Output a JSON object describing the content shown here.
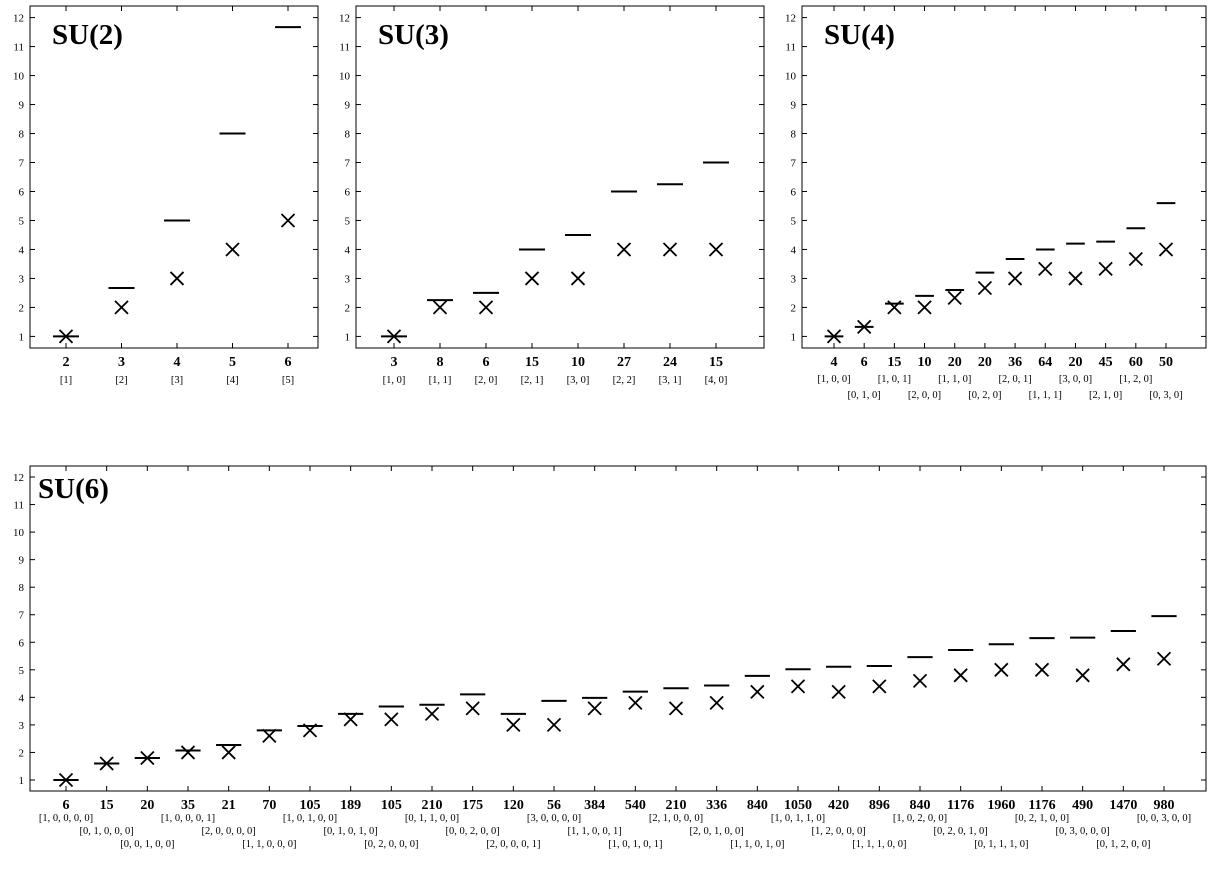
{
  "chart_data": [
    {
      "type": "scatter",
      "title": "SU(2)",
      "ylim": [
        0.6,
        12.4
      ],
      "yticks": [
        1,
        2,
        3,
        4,
        5,
        6,
        7,
        8,
        9,
        10,
        11,
        12
      ],
      "categories": [
        "2",
        "3",
        "4",
        "5",
        "6"
      ],
      "sublabels": [
        "[1]",
        "[2]",
        "[3]",
        "[4]",
        "[5]"
      ],
      "series": [
        {
          "marker": "dash",
          "values": [
            1,
            2.67,
            5,
            8,
            11.67
          ]
        },
        {
          "marker": "cross",
          "values": [
            1,
            2,
            3,
            4,
            5
          ]
        }
      ]
    },
    {
      "type": "scatter",
      "title": "SU(3)",
      "ylim": [
        0.6,
        12.4
      ],
      "yticks": [
        1,
        2,
        3,
        4,
        5,
        6,
        7,
        8,
        9,
        10,
        11,
        12
      ],
      "categories": [
        "3",
        "8",
        "6",
        "15",
        "10",
        "27",
        "24",
        "15"
      ],
      "sublabels": [
        "[1, 0]",
        "[1, 1]",
        "[2, 0]",
        "[2, 1]",
        "[3, 0]",
        "[2, 2]",
        "[3, 1]",
        "[4, 0]"
      ],
      "series": [
        {
          "marker": "dash",
          "values": [
            1,
            2.25,
            2.5,
            4,
            4.5,
            6,
            6.25,
            7
          ]
        },
        {
          "marker": "cross",
          "values": [
            1,
            2,
            2,
            3,
            3,
            4,
            4,
            4
          ]
        }
      ]
    },
    {
      "type": "scatter",
      "title": "SU(4)",
      "ylim": [
        0.6,
        12.4
      ],
      "yticks": [
        1,
        2,
        3,
        4,
        5,
        6,
        7,
        8,
        9,
        10,
        11,
        12
      ],
      "categories": [
        "4",
        "6",
        "15",
        "10",
        "20",
        "20",
        "36",
        "64",
        "20",
        "45",
        "60",
        "50"
      ],
      "sublabels": [
        "[1, 0, 0]",
        "[0, 1, 0]",
        "[1, 0, 1]",
        "[2, 0, 0]",
        "[1, 1, 0]",
        "[0, 2, 0]",
        "[2, 0, 1]",
        "[1, 1, 1]",
        "[3, 0, 0]",
        "[2, 1, 0]",
        "[1, 2, 0]",
        "[0, 3, 0]"
      ],
      "series": [
        {
          "marker": "dash",
          "values": [
            1,
            1.33,
            2.13,
            2.4,
            2.6,
            3.2,
            3.67,
            4,
            4.2,
            4.27,
            4.73,
            5.6
          ]
        },
        {
          "marker": "cross",
          "values": [
            1,
            1.33,
            2,
            2,
            2.33,
            2.67,
            3,
            3.33,
            3,
            3.33,
            3.67,
            4
          ]
        }
      ]
    },
    {
      "type": "scatter",
      "title": "SU(6)",
      "ylim": [
        0.6,
        12.4
      ],
      "yticks": [
        1,
        2,
        3,
        4,
        5,
        6,
        7,
        8,
        9,
        10,
        11,
        12
      ],
      "categories": [
        "6",
        "15",
        "20",
        "35",
        "21",
        "70",
        "105",
        "189",
        "105",
        "210",
        "175",
        "120",
        "56",
        "384",
        "540",
        "210",
        "336",
        "840",
        "1050",
        "420",
        "896",
        "840",
        "1176",
        "1960",
        "1176",
        "490",
        "1470",
        "980"
      ],
      "sublabels": [
        "[1, 0, 0, 0, 0]",
        "[0, 1, 0, 0, 0]",
        "[0, 0, 1, 0, 0]",
        "[1, 0, 0, 0, 1]",
        "[2, 0, 0, 0, 0]",
        "[1, 1, 0, 0, 0]",
        "[1, 0, 1, 0, 0]",
        "[0, 1, 0, 1, 0]",
        "[0, 2, 0, 0, 0]",
        "[0, 1, 1, 0, 0]",
        "[0, 0, 2, 0, 0]",
        "[2, 0, 0, 0, 1]",
        "[3, 0, 0, 0, 0]",
        "[1, 1, 0, 0, 1]",
        "[1, 0, 1, 0, 1]",
        "[2, 1, 0, 0, 0]",
        "[2, 0, 1, 0, 0]",
        "[1, 1, 0, 1, 0]",
        "[1, 0, 1, 1, 0]",
        "[1, 2, 0, 0, 0]",
        "[1, 1, 1, 0, 0]",
        "[1, 0, 2, 0, 0]",
        "[0, 2, 0, 1, 0]",
        "[0, 1, 1, 1, 0]",
        "[0, 2, 1, 0, 0]",
        "[0, 3, 0, 0, 0]",
        "[0, 1, 2, 0, 0]",
        "[0, 0, 3, 0, 0]"
      ],
      "series": [
        {
          "marker": "dash",
          "values": [
            1,
            1.6,
            1.8,
            2.07,
            2.27,
            2.8,
            2.96,
            3.4,
            3.67,
            3.73,
            4.11,
            3.4,
            3.87,
            3.98,
            4.21,
            4.33,
            4.43,
            4.78,
            5.02,
            5.11,
            5.14,
            5.46,
            5.72,
            5.93,
            6.15,
            6.17,
            6.41,
            6.95
          ]
        },
        {
          "marker": "cross",
          "values": [
            1,
            1.6,
            1.8,
            2,
            2,
            2.6,
            2.8,
            3.2,
            3.2,
            3.4,
            3.6,
            3,
            3,
            3.6,
            3.8,
            3.6,
            3.8,
            4.2,
            4.4,
            4.2,
            4.4,
            4.6,
            4.8,
            5,
            5,
            4.8,
            5.2,
            5.4
          ]
        }
      ]
    }
  ]
}
